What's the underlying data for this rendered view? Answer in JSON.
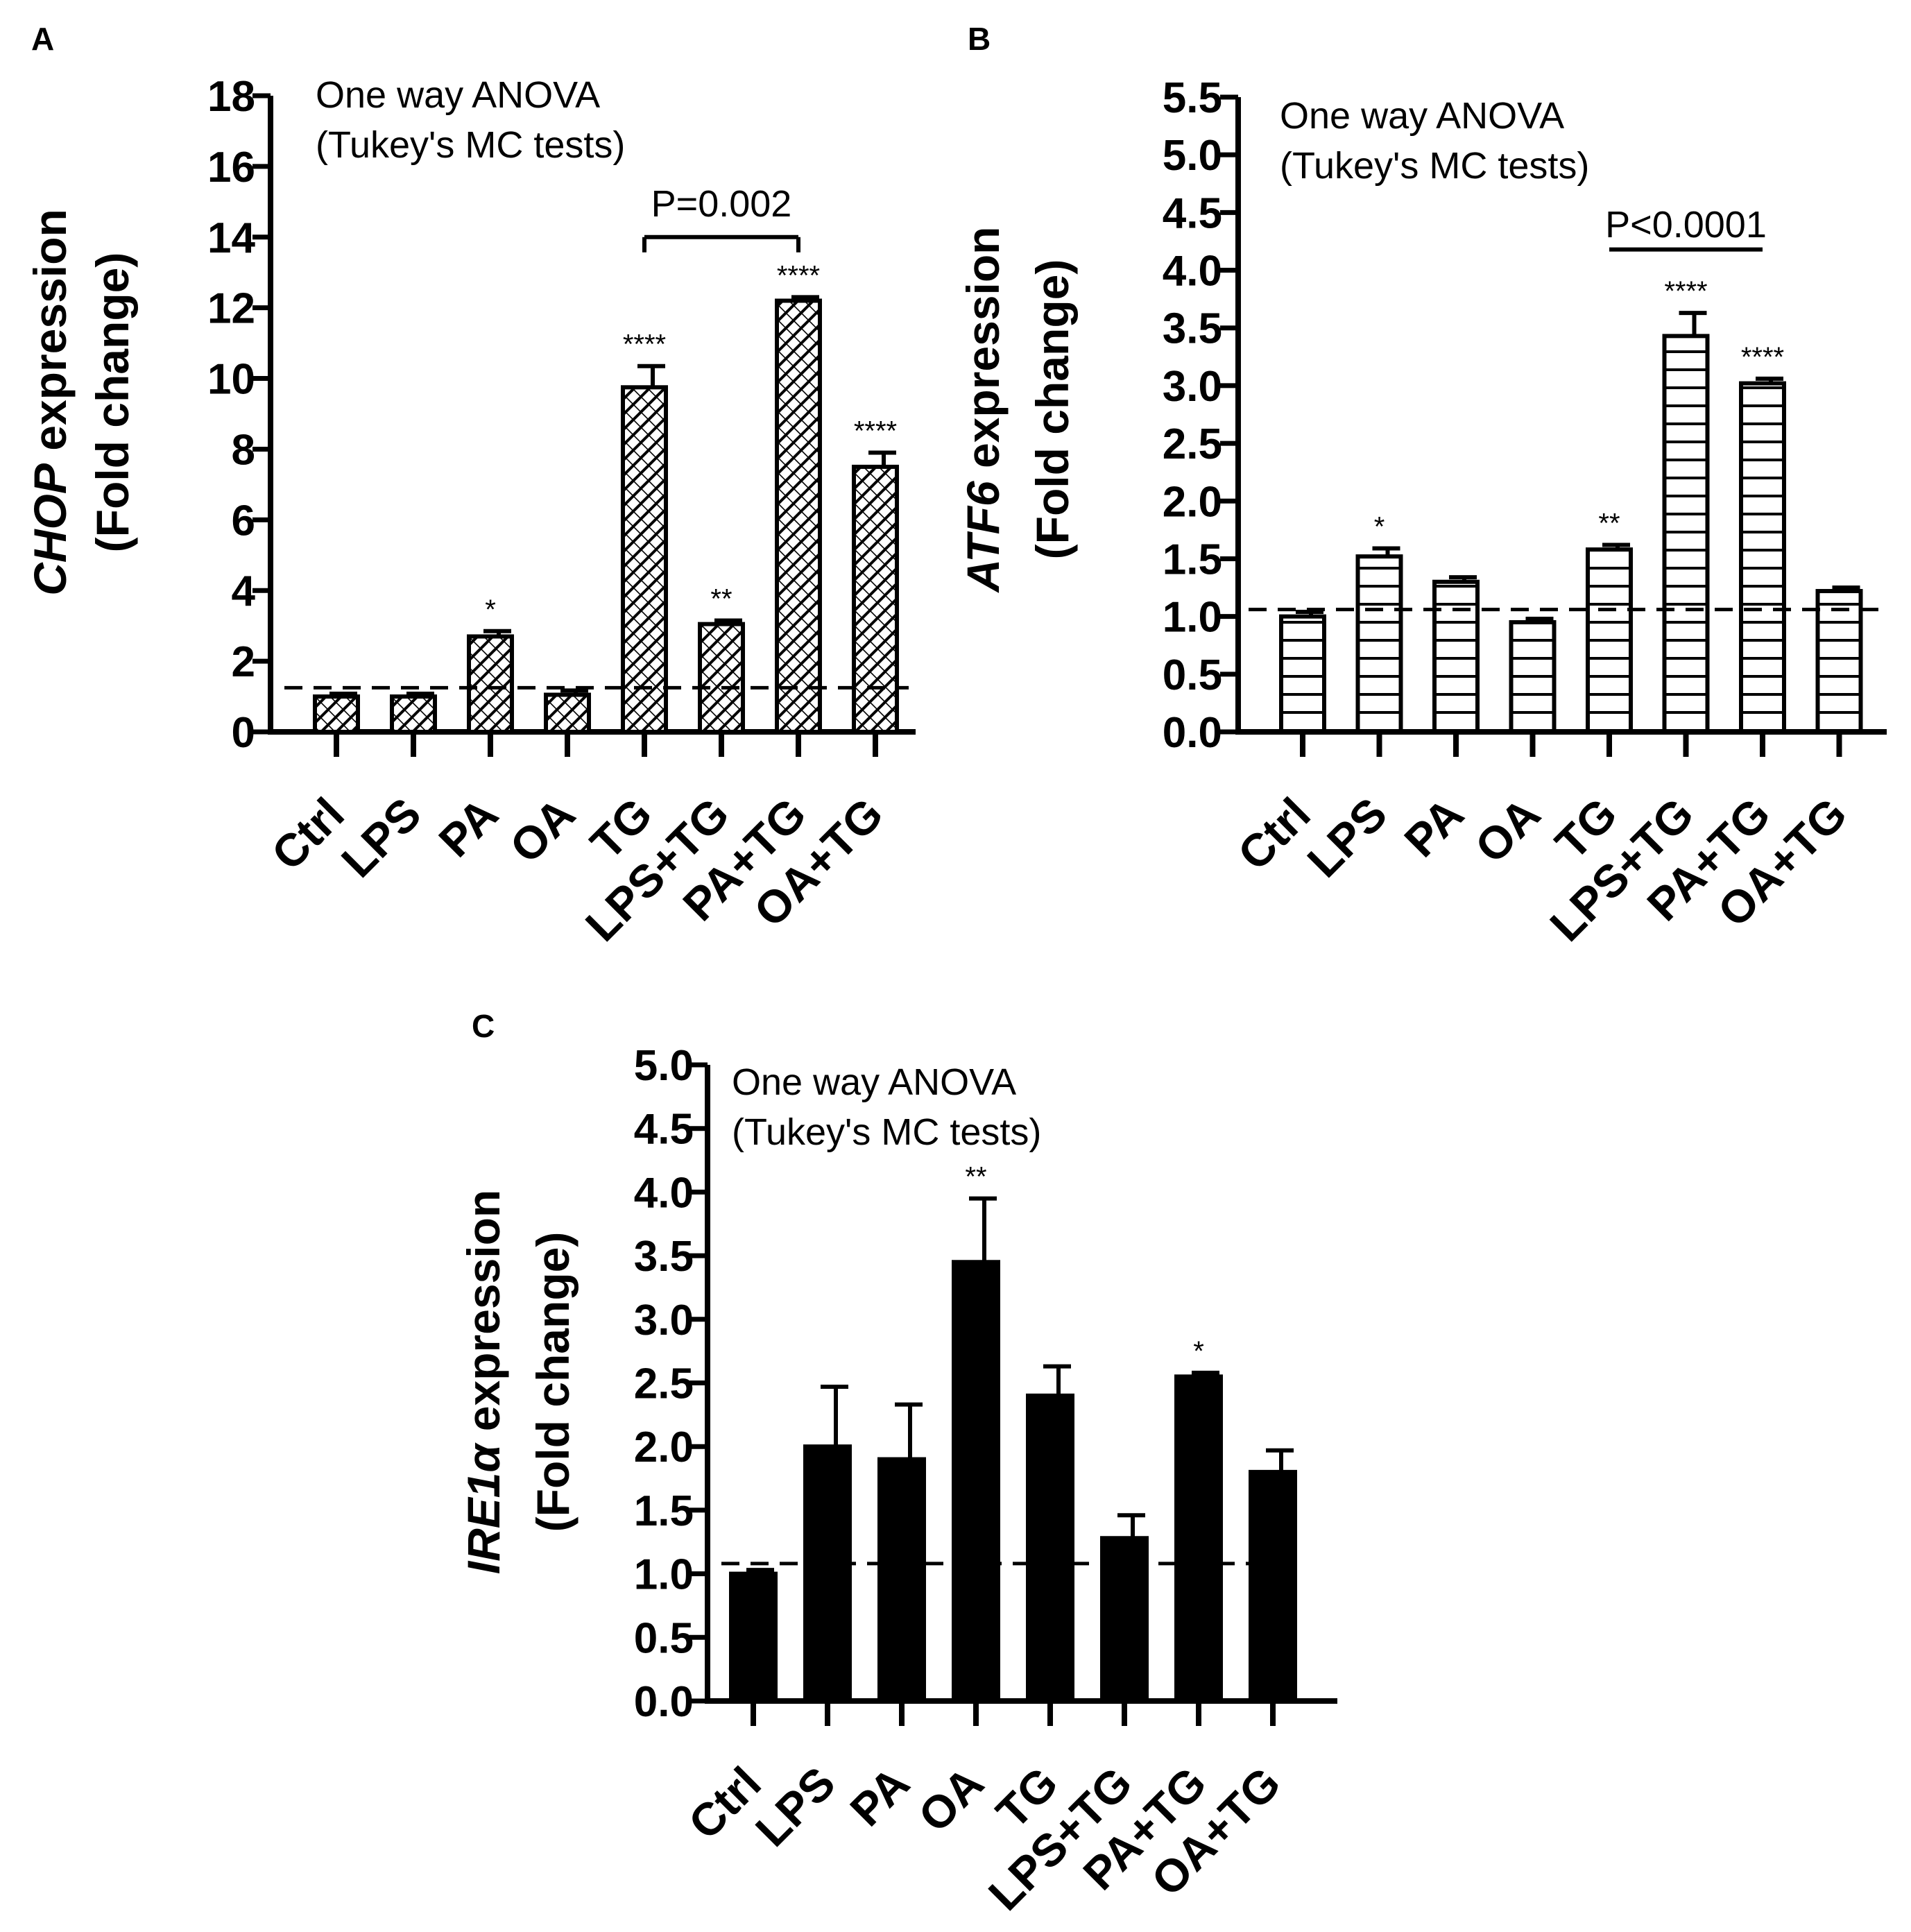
{
  "chart_data": [
    {
      "panel": "A",
      "type": "bar",
      "fill": "diagonal-hatch",
      "categories": [
        "Ctrl",
        "LPS",
        "PA",
        "OA",
        "TG",
        "LPS+TG",
        "PA+TG",
        "OA+TG"
      ],
      "values": [
        1.0,
        1.0,
        2.7,
        1.05,
        9.75,
        3.05,
        12.2,
        7.5
      ],
      "errors": [
        0.08,
        0.08,
        0.15,
        0.12,
        0.6,
        0.1,
        0.1,
        0.4
      ],
      "significance": [
        "",
        "",
        "*",
        "",
        "****",
        "**",
        "****",
        "****"
      ],
      "ylabel_italic": "CHOP",
      "ylabel_rest": " expression",
      "ylabel_line2": "(Fold change)",
      "ylim": [
        0,
        18
      ],
      "yticks": [
        0,
        2,
        4,
        6,
        8,
        10,
        12,
        14,
        16,
        18
      ],
      "yticklabels": [
        "0",
        "2",
        "4",
        "6",
        "8",
        "10",
        "12",
        "14",
        "16",
        "18"
      ],
      "reference_line": 1.25,
      "annotation": [
        "One way ANOVA",
        "(Tukey's MC tests)"
      ],
      "comparison": {
        "from": "TG",
        "to": "PA+TG",
        "label": "P=0.002",
        "y": 14.0,
        "bracket": true
      }
    },
    {
      "panel": "B",
      "type": "bar",
      "fill": "horizontal-hatch",
      "categories": [
        "Ctrl",
        "LPS",
        "PA",
        "OA",
        "TG",
        "LPS+TG",
        "PA+TG",
        "OA+TG"
      ],
      "values": [
        1.0,
        1.52,
        1.3,
        0.95,
        1.58,
        3.43,
        3.02,
        1.22
      ],
      "errors": [
        0.04,
        0.07,
        0.04,
        0.03,
        0.04,
        0.2,
        0.04,
        0.03
      ],
      "significance": [
        "",
        "*",
        "",
        "",
        "**",
        "****",
        "****",
        ""
      ],
      "ylabel_italic": "ATF6",
      "ylabel_rest": " expression",
      "ylabel_line2": "(Fold change)",
      "ylim": [
        0,
        5.5
      ],
      "yticks": [
        0,
        0.5,
        1.0,
        1.5,
        2.0,
        2.5,
        3.0,
        3.5,
        4.0,
        4.5,
        5.0,
        5.5
      ],
      "yticklabels": [
        "0.0",
        "0.5",
        "1.0",
        "1.5",
        "2.0",
        "2.5",
        "3.0",
        "3.5",
        "4.0",
        "4.5",
        "5.0",
        "5.5"
      ],
      "reference_line": 1.06,
      "annotation": [
        "One way ANOVA",
        "(Tukey's MC tests)"
      ],
      "comparison": {
        "from": "TG",
        "to": "PA+TG",
        "label": "P<0.0001",
        "y": 4.18,
        "bracket": false
      }
    },
    {
      "panel": "C",
      "type": "bar",
      "fill": "solid",
      "categories": [
        "Ctrl",
        "LPS",
        "PA",
        "OA",
        "TG",
        "LPS+TG",
        "PA+TG",
        "OA+TG"
      ],
      "values": [
        1.0,
        2.0,
        1.9,
        3.45,
        2.4,
        1.28,
        2.55,
        1.8
      ],
      "errors": [
        0.03,
        0.47,
        0.43,
        0.5,
        0.23,
        0.18,
        0.03,
        0.17
      ],
      "significance": [
        "",
        "",
        "",
        "**",
        "",
        "",
        "*",
        ""
      ],
      "ylabel_italic": "IRE1α",
      "ylabel_rest": " expression",
      "ylabel_line2": "(Fold change)",
      "ylim": [
        0,
        5.0
      ],
      "yticks": [
        0,
        0.5,
        1.0,
        1.5,
        2.0,
        2.5,
        3.0,
        3.5,
        4.0,
        4.5,
        5.0
      ],
      "yticklabels": [
        "0.0",
        "0.5",
        "1.0",
        "1.5",
        "2.0",
        "2.5",
        "3.0",
        "3.5",
        "4.0",
        "4.5",
        "5.0"
      ],
      "reference_line": 1.08,
      "annotation": [
        "One way ANOVA",
        "(Tukey's MC tests)"
      ],
      "comparison": null
    }
  ]
}
